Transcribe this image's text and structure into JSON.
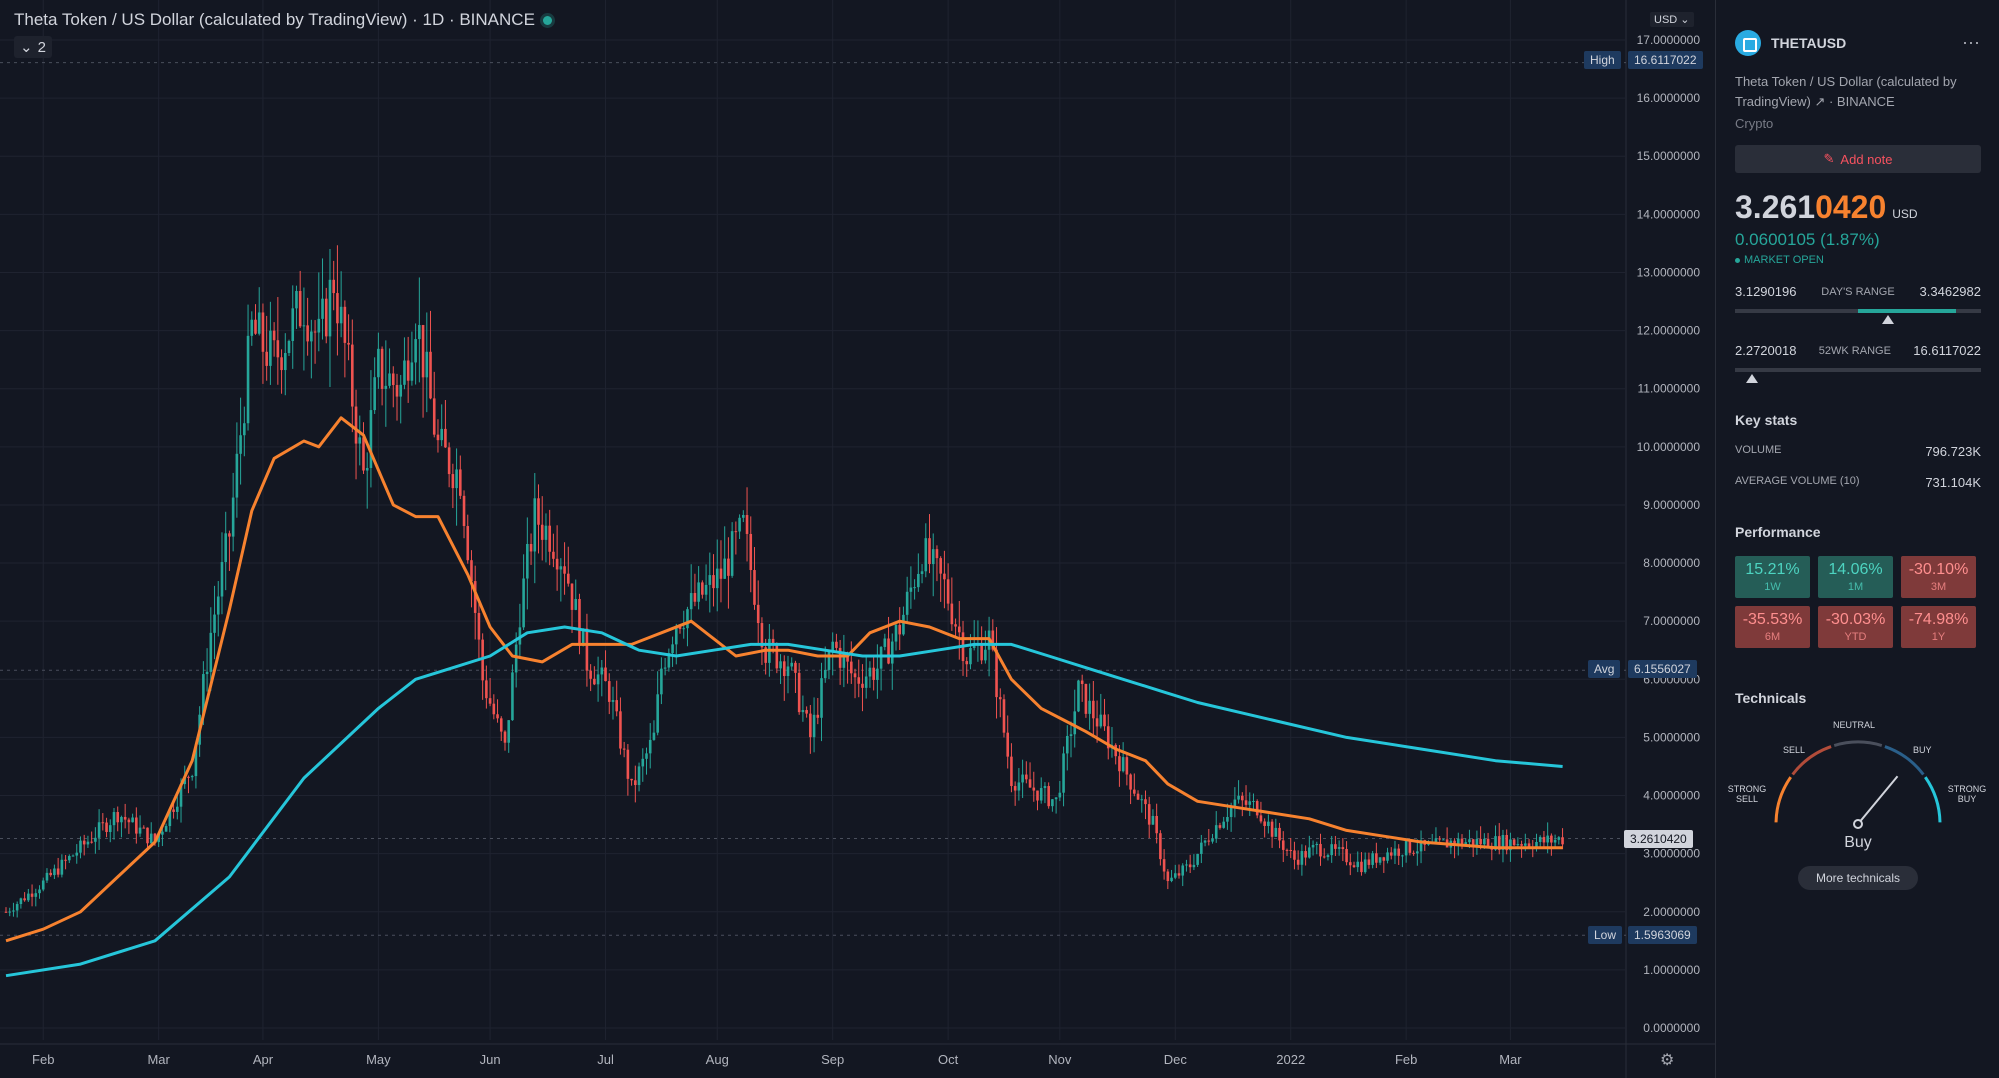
{
  "header": {
    "title": "Theta Token / US Dollar (calculated by TradingView) · 1D · BINANCE",
    "collapse_count": "2",
    "currency_button": "USD"
  },
  "price_badges": {
    "high_label": "High",
    "high_value": "16.6117022",
    "avg_label": "Avg",
    "avg_value": "6.1556027",
    "low_label": "Low",
    "low_value": "1.5963069",
    "last_value": "3.2610420"
  },
  "chart_data": {
    "type": "candlestick",
    "yaxis_ticks": [
      "17.0000000",
      "16.0000000",
      "15.0000000",
      "14.0000000",
      "13.0000000",
      "12.0000000",
      "11.0000000",
      "10.0000000",
      "9.0000000",
      "8.0000000",
      "7.0000000",
      "6.0000000",
      "5.0000000",
      "4.0000000",
      "3.0000000",
      "2.0000000",
      "1.0000000",
      "0.0000000"
    ],
    "ylim": [
      0,
      17
    ],
    "xaxis_ticks": [
      "Feb",
      "Mar",
      "Apr",
      "May",
      "Jun",
      "Jul",
      "Aug",
      "Sep",
      "Oct",
      "Nov",
      "Dec",
      "2022",
      "Feb",
      "Mar",
      "Apr"
    ],
    "price_series": {
      "days": [
        0,
        10,
        20,
        30,
        40,
        50,
        55,
        60,
        66,
        72,
        80,
        84,
        88,
        92,
        96,
        100,
        106,
        110,
        116,
        122,
        128,
        134,
        138,
        142,
        146,
        150,
        156,
        162,
        168,
        174,
        176,
        180,
        186,
        192,
        198,
        204,
        210,
        216,
        222,
        228,
        234,
        240,
        246,
        252,
        258,
        264,
        270,
        276,
        282,
        288,
        294,
        300,
        304,
        308,
        312,
        318,
        324,
        330,
        336,
        340,
        346,
        352,
        358,
        364,
        370,
        376,
        382,
        388,
        394,
        400,
        406,
        412,
        418
      ],
      "close": [
        2.0,
        2.5,
        3.1,
        3.7,
        3.2,
        4.5,
        6.8,
        8.5,
        12.0,
        11.5,
        12.5,
        11.8,
        12.9,
        11.3,
        9.5,
        11.3,
        11.0,
        12.3,
        10.0,
        9.5,
        6.0,
        4.8,
        7.2,
        8.8,
        8.5,
        8.0,
        6.3,
        5.8,
        4.1,
        5.0,
        6.2,
        7.0,
        7.4,
        7.8,
        8.6,
        6.5,
        6.3,
        5.0,
        6.6,
        6.0,
        6.2,
        6.9,
        8.2,
        7.6,
        6.4,
        6.7,
        4.3,
        4.1,
        3.9,
        5.8,
        5.2,
        4.5,
        4.0,
        3.5,
        2.5,
        2.8,
        3.4,
        3.9,
        3.8,
        3.4,
        2.9,
        3.1,
        3.0,
        2.8,
        3.0,
        3.1,
        3.1,
        3.2,
        3.2,
        3.2,
        3.2,
        3.2,
        3.26
      ]
    },
    "series": [
      {
        "name": "",
        "color": "#f7822f",
        "days": [
          0,
          10,
          20,
          30,
          40,
          50,
          60,
          66,
          72,
          80,
          84,
          90,
          96,
          104,
          110,
          116,
          124,
          130,
          136,
          144,
          152,
          160,
          168,
          176,
          184,
          190,
          196,
          204,
          210,
          218,
          226,
          232,
          240,
          248,
          256,
          264,
          270,
          278,
          284,
          290,
          298,
          306,
          312,
          320,
          330,
          340,
          350,
          360,
          370,
          380,
          390,
          400,
          410,
          418
        ],
        "values": [
          1.5,
          1.7,
          2.0,
          2.6,
          3.2,
          4.6,
          7.2,
          8.9,
          9.8,
          10.1,
          10.0,
          10.5,
          10.2,
          9.0,
          8.8,
          8.8,
          7.8,
          6.9,
          6.4,
          6.3,
          6.6,
          6.6,
          6.6,
          6.8,
          7.0,
          6.7,
          6.4,
          6.5,
          6.5,
          6.4,
          6.4,
          6.8,
          7.0,
          6.9,
          6.7,
          6.7,
          6.0,
          5.5,
          5.3,
          5.1,
          4.8,
          4.6,
          4.2,
          3.9,
          3.8,
          3.7,
          3.6,
          3.4,
          3.3,
          3.2,
          3.15,
          3.1,
          3.1,
          3.1
        ]
      },
      {
        "name": "",
        "color": "#26c6da",
        "days": [
          0,
          20,
          40,
          60,
          80,
          100,
          110,
          120,
          130,
          140,
          150,
          160,
          170,
          180,
          190,
          200,
          210,
          220,
          230,
          240,
          250,
          260,
          270,
          280,
          290,
          300,
          310,
          320,
          340,
          360,
          380,
          400,
          418
        ],
        "values": [
          0.9,
          1.1,
          1.5,
          2.6,
          4.3,
          5.5,
          6.0,
          6.2,
          6.4,
          6.8,
          6.9,
          6.8,
          6.5,
          6.4,
          6.5,
          6.6,
          6.6,
          6.5,
          6.4,
          6.4,
          6.5,
          6.6,
          6.6,
          6.4,
          6.2,
          6.0,
          5.8,
          5.6,
          5.3,
          5.0,
          4.8,
          4.6,
          4.5
        ]
      }
    ],
    "price_marks": {
      "high": 16.6117022,
      "avg": 6.1556027,
      "low": 1.5963069,
      "last": 3.261042
    }
  },
  "sidebar": {
    "symbol": "THETAUSD",
    "more_icon": "⋯",
    "description": "Theta Token / US Dollar (calculated by TradingView) ↗ · BINANCE",
    "category": "Crypto",
    "add_note": "Add note",
    "price_prefix": "3.261",
    "price_suffix": "0420",
    "price_currency": "USD",
    "change": "0.0600105 (1.87%)",
    "market_status": "MARKET OPEN",
    "day_range": {
      "low": "3.1290196",
      "label": "DAY'S RANGE",
      "high": "3.3462982",
      "fill_start": 0.5,
      "fill_end": 0.9,
      "marker": 0.62
    },
    "wk52_range": {
      "low": "2.2720018",
      "label": "52WK RANGE",
      "high": "16.6117022",
      "marker": 0.07
    },
    "key_stats_title": "Key stats",
    "volume_label": "VOLUME",
    "volume": "796.723K",
    "avg_volume_label": "AVERAGE VOLUME (10)",
    "avg_volume": "731.104K",
    "performance_title": "Performance",
    "performance": [
      {
        "value": "15.21%",
        "period": "1W",
        "sign": "pos"
      },
      {
        "value": "14.06%",
        "period": "1M",
        "sign": "pos"
      },
      {
        "value": "-30.10%",
        "period": "3M",
        "sign": "neg"
      },
      {
        "value": "-35.53%",
        "period": "6M",
        "sign": "neg"
      },
      {
        "value": "-30.03%",
        "period": "YTD",
        "sign": "neg"
      },
      {
        "value": "-74.98%",
        "period": "1Y",
        "sign": "neg"
      }
    ],
    "technicals_title": "Technicals",
    "gauge": {
      "neutral": "NEUTRAL",
      "sell": "SELL",
      "buy": "BUY",
      "strong_sell": "STRONG SELL",
      "strong_buy": "STRONG BUY",
      "result": "Buy",
      "needle_level": 0.72
    },
    "more_technicals": "More technicals"
  }
}
